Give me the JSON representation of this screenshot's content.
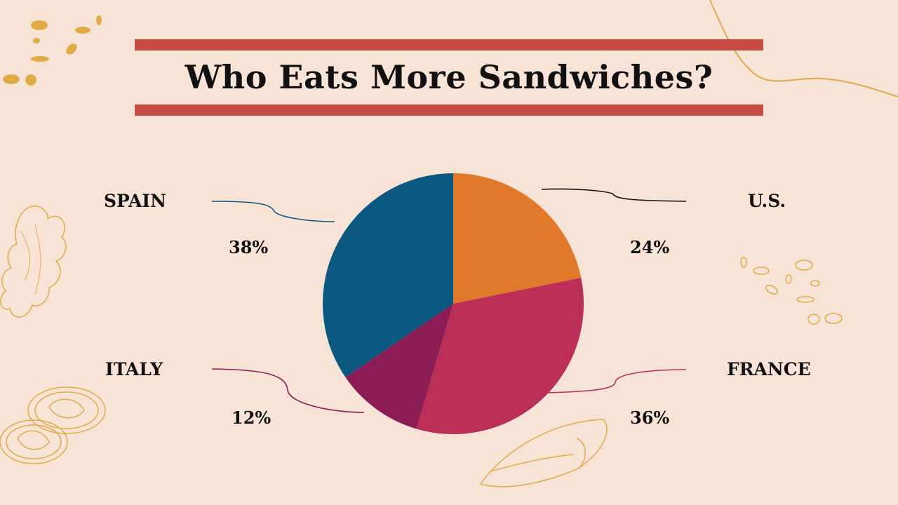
{
  "title": "Who Eats More Sandwiches?",
  "colors": {
    "background": "#f8e4d6",
    "title_bars": "#c84b45",
    "decor": "#e0ab45"
  },
  "chart_data": {
    "type": "pie",
    "start_angle_deg": 0,
    "direction": "clockwise",
    "slices": [
      {
        "label": "U.S.",
        "value": 24,
        "value_label": "24%",
        "color": "#e07a2a",
        "leader_color": "#111111"
      },
      {
        "label": "FRANCE",
        "value": 36,
        "value_label": "36%",
        "color": "#bb2e55",
        "leader_color": "#bb2e55"
      },
      {
        "label": "ITALY",
        "value": 12,
        "value_label": "12%",
        "color": "#8c1c55",
        "leader_color": "#8c1c55"
      },
      {
        "label": "SPAIN",
        "value": 38,
        "value_label": "38%",
        "color": "#0b5980",
        "leader_color": "#0b5980"
      }
    ]
  }
}
